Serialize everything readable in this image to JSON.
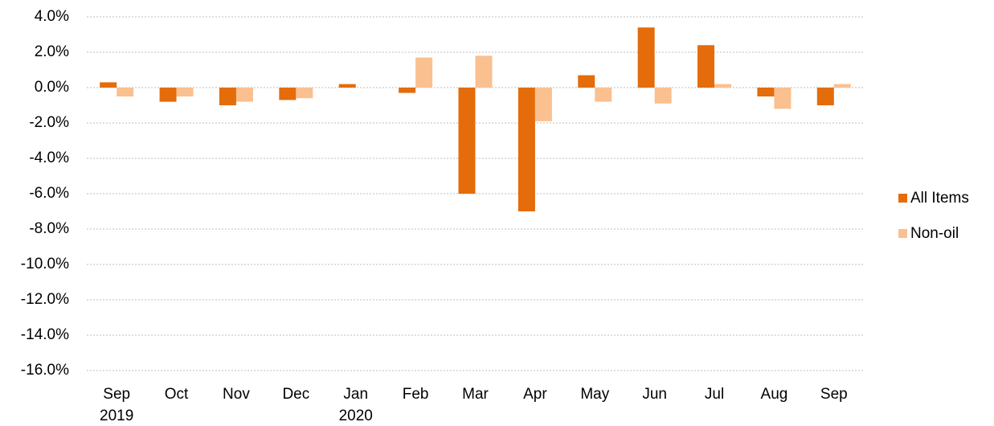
{
  "chart_data": {
    "type": "bar",
    "categories": [
      "Sep\n2019",
      "Oct",
      "Nov",
      "Dec",
      "Jan\n2020",
      "Feb",
      "Mar",
      "Apr",
      "May",
      "Jun",
      "Jul",
      "Aug",
      "Sep"
    ],
    "series": [
      {
        "name": "All Items",
        "color": "#e46c0a",
        "values": [
          0.3,
          -0.8,
          -1.0,
          -0.7,
          0.2,
          -0.3,
          -6.0,
          -7.0,
          0.7,
          3.4,
          2.4,
          -0.5,
          -1.0
        ]
      },
      {
        "name": "Non-oil",
        "color": "#fac090",
        "values": [
          -0.5,
          -0.5,
          -0.8,
          -0.6,
          0.0,
          1.7,
          1.8,
          -1.9,
          -0.8,
          -0.9,
          0.2,
          -1.2,
          0.2
        ]
      }
    ],
    "ylim": [
      -16,
      4
    ],
    "yticks": [
      {
        "value": 4,
        "label": "4.0%"
      },
      {
        "value": 2,
        "label": "2.0%"
      },
      {
        "value": 0,
        "label": "0.0%"
      },
      {
        "value": -2,
        "label": "-2.0%"
      },
      {
        "value": -4,
        "label": "-4.0%"
      },
      {
        "value": -6,
        "label": "-6.0%"
      },
      {
        "value": -8,
        "label": "-8.0%"
      },
      {
        "value": -10,
        "label": "-10.0%"
      },
      {
        "value": -12,
        "label": "-12.0%"
      },
      {
        "value": -14,
        "label": "-14.0%"
      },
      {
        "value": -16,
        "label": "-16.0%"
      }
    ],
    "grid": true,
    "legend": "right"
  }
}
